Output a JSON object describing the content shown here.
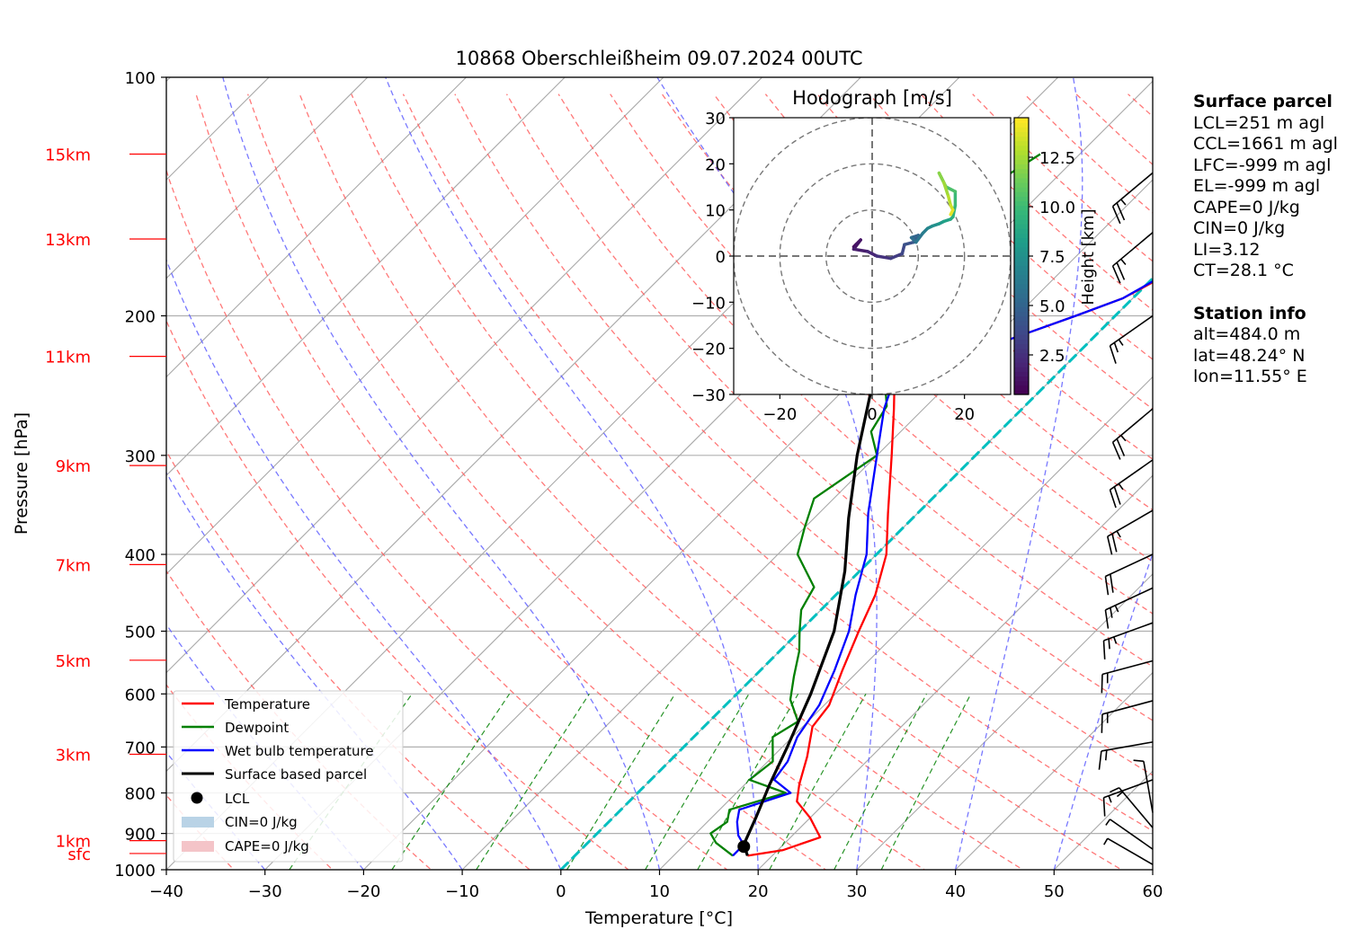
{
  "chart_data": {
    "type": "skew-t",
    "title": "10868 Oberschleißheim 09.07.2024 00UTC",
    "xlabel": "Temperature [°C]",
    "ylabel": "Pressure [hPa]",
    "xlim": [
      -40,
      60
    ],
    "ylim": [
      1000,
      100
    ],
    "x_ticks": [
      "−40",
      "−30",
      "−20",
      "−10",
      "0",
      "10",
      "20",
      "30",
      "40",
      "50",
      "60"
    ],
    "x_tick_values": [
      -40,
      -30,
      -20,
      -10,
      0,
      10,
      20,
      30,
      40,
      50,
      60
    ],
    "y_ticks": [
      "100",
      "200",
      "300",
      "400",
      "500",
      "600",
      "700",
      "800",
      "900",
      "1000"
    ],
    "y_tick_values": [
      100,
      200,
      300,
      400,
      500,
      600,
      700,
      800,
      900,
      1000
    ],
    "height_labels": [
      {
        "label": "15km",
        "p": 125
      },
      {
        "label": "13km",
        "p": 160
      },
      {
        "label": "11km",
        "p": 225
      },
      {
        "label": "9km",
        "p": 309
      },
      {
        "label": "7km",
        "p": 412
      },
      {
        "label": "5km",
        "p": 544
      },
      {
        "label": "3km",
        "p": 715
      },
      {
        "label": "1km",
        "p": 919
      },
      {
        "label": "sfc",
        "p": 954
      }
    ],
    "colors": {
      "temperature": "#ff0000",
      "dewpoint": "#008000",
      "wetbulb": "#0000ff",
      "parcel": "#000000",
      "isotherm_zero": "#00bfbf",
      "height_label": "#ff0000",
      "dry_adiabat": "#ff6060",
      "moist_adiabat": "#6060ff",
      "mixing_ratio": "#008000",
      "cin_fill": "#b9d3e6",
      "cape_fill": "#f4c4c8"
    },
    "series": [
      {
        "name": "Temperature",
        "points": [
          [
            17.5,
            960
          ],
          [
            20.5,
            945
          ],
          [
            23,
            910
          ],
          [
            20,
            860
          ],
          [
            17,
            820
          ],
          [
            15.5,
            780
          ],
          [
            13.5,
            720
          ],
          [
            11,
            660
          ],
          [
            10.5,
            620
          ],
          [
            8.3,
            560
          ],
          [
            6,
            500
          ],
          [
            4,
            450
          ],
          [
            1,
            400
          ],
          [
            -3,
            355
          ],
          [
            -8.5,
            300
          ],
          [
            -13,
            262
          ],
          [
            -16,
            240
          ],
          [
            -10,
            220
          ],
          [
            -4,
            200
          ],
          [
            -1,
            190
          ],
          [
            1.5,
            175
          ],
          [
            3,
            160
          ],
          [
            4.5,
            140
          ],
          [
            5,
            130
          ],
          [
            5.5,
            123
          ]
        ]
      },
      {
        "name": "Dewpoint",
        "points": [
          [
            16,
            960
          ],
          [
            13,
            925
          ],
          [
            11.5,
            900
          ],
          [
            12,
            870
          ],
          [
            11,
            840
          ],
          [
            15,
            800
          ],
          [
            10,
            770
          ],
          [
            10.5,
            730
          ],
          [
            8,
            680
          ],
          [
            9,
            650
          ],
          [
            6,
            610
          ],
          [
            4,
            570
          ],
          [
            2,
            530
          ],
          [
            0,
            500
          ],
          [
            -2,
            470
          ],
          [
            -3,
            440
          ],
          [
            -8,
            400
          ],
          [
            -10,
            370
          ],
          [
            -12,
            340
          ],
          [
            -10,
            300
          ],
          [
            -13,
            280
          ],
          [
            -14,
            260
          ],
          [
            -17,
            240
          ],
          [
            -24,
            220
          ],
          [
            -25,
            200
          ],
          [
            -27,
            180
          ],
          [
            -27.5,
            165
          ],
          [
            -28,
            155
          ],
          [
            -27,
            145
          ],
          [
            -25.5,
            135
          ],
          [
            -24,
            125
          ]
        ]
      },
      {
        "name": "Wet bulb temperature",
        "points": [
          [
            16,
            960
          ],
          [
            16,
            930
          ],
          [
            14.5,
            905
          ],
          [
            13,
            870
          ],
          [
            12,
            840
          ],
          [
            15.5,
            800
          ],
          [
            12.5,
            770
          ],
          [
            12,
            730
          ],
          [
            10.5,
            680
          ],
          [
            9.5,
            620
          ],
          [
            7.5,
            560
          ],
          [
            5,
            500
          ],
          [
            2,
            450
          ],
          [
            -1,
            400
          ],
          [
            -5,
            355
          ],
          [
            -10,
            300
          ],
          [
            -14,
            262
          ],
          [
            -16,
            240
          ],
          [
            -10,
            220
          ],
          [
            -4,
            200
          ],
          [
            -1,
            190
          ],
          [
            1.2,
            175
          ],
          [
            2.7,
            160
          ],
          [
            4.3,
            140
          ],
          [
            5,
            130
          ],
          [
            5.3,
            123
          ]
        ]
      },
      {
        "name": "Surface based parcel",
        "points": [
          [
            17.5,
            960
          ],
          [
            16,
            930
          ],
          [
            14.5,
            860
          ],
          [
            12.5,
            780
          ],
          [
            10.5,
            700
          ],
          [
            7.5,
            600
          ],
          [
            3.5,
            500
          ],
          [
            -1.5,
            420
          ],
          [
            -6.5,
            360
          ],
          [
            -12,
            300
          ],
          [
            -17,
            250
          ],
          [
            -21.5,
            210
          ],
          [
            -25.5,
            180
          ],
          [
            -29,
            155
          ],
          [
            -32,
            125
          ]
        ]
      }
    ],
    "lcl": {
      "t": 16.2,
      "p": 935
    },
    "wind_barbs": [
      {
        "p": 985,
        "dir": 300,
        "speed": 3
      },
      {
        "p": 942,
        "dir": 305,
        "speed": 4
      },
      {
        "p": 885,
        "dir": 320,
        "speed": 8
      },
      {
        "p": 847,
        "dir": 350,
        "speed": 5
      },
      {
        "p": 770,
        "dir": 250,
        "speed": 12
      },
      {
        "p": 690,
        "dir": 260,
        "speed": 15
      },
      {
        "p": 612,
        "dir": 255,
        "speed": 15
      },
      {
        "p": 545,
        "dir": 255,
        "speed": 15
      },
      {
        "p": 488,
        "dir": 250,
        "speed": 17
      },
      {
        "p": 441,
        "dir": 245,
        "speed": 17
      },
      {
        "p": 400,
        "dir": 245,
        "speed": 20
      },
      {
        "p": 352,
        "dir": 240,
        "speed": 22
      },
      {
        "p": 304,
        "dir": 235,
        "speed": 22
      },
      {
        "p": 262,
        "dir": 230,
        "speed": 22
      },
      {
        "p": 200,
        "dir": 235,
        "speed": 17
      },
      {
        "p": 157,
        "dir": 230,
        "speed": 22
      },
      {
        "p": 132,
        "dir": 230,
        "speed": 24
      }
    ],
    "legend": {
      "placement": "lower-left",
      "entries": [
        "Temperature",
        "Dewpoint",
        "Wet bulb temperature",
        "Surface based parcel",
        "LCL",
        "CIN=0 J/kg",
        "CAPE=0 J/kg"
      ]
    },
    "hodograph": {
      "title": "Hodograph [m/s]",
      "xlim": [
        -30,
        30
      ],
      "ylim": [
        -30,
        30
      ],
      "x_ticks": [
        "−20",
        "0",
        "20"
      ],
      "x_tick_values": [
        -20,
        0,
        20
      ],
      "y_ticks": [
        "30",
        "20",
        "10",
        "0",
        "−10",
        "−20",
        "−30"
      ],
      "y_tick_values": [
        30,
        20,
        10,
        0,
        -10,
        -20,
        -30
      ],
      "colorbar_label": "Height [km]",
      "colorbar_ticks": [
        "2.5",
        "5.0",
        "7.5",
        "10.0",
        "12.5"
      ],
      "colorbar_tick_values": [
        2.5,
        5,
        7.5,
        10,
        12.5
      ],
      "colorbar_range": [
        0.5,
        14.5
      ],
      "points": [
        [
          -4,
          2,
          0.5
        ],
        [
          -3.5,
          2.5,
          0.8
        ],
        [
          -2.5,
          3.5,
          1
        ],
        [
          -4,
          1.5,
          1.3
        ],
        [
          -1,
          1,
          1.6
        ],
        [
          1,
          0,
          2
        ],
        [
          4,
          -0.5,
          2.5
        ],
        [
          6.5,
          0.5,
          3
        ],
        [
          7,
          2.5,
          3.5
        ],
        [
          9,
          3,
          4
        ],
        [
          10,
          4.5,
          4.5
        ],
        [
          8.5,
          4,
          5
        ],
        [
          9.5,
          3,
          5.5
        ],
        [
          11,
          5,
          6
        ],
        [
          12,
          6,
          6.5
        ],
        [
          13,
          6.5,
          7
        ],
        [
          14.5,
          7,
          7.5
        ],
        [
          15.5,
          7.5,
          8
        ],
        [
          17,
          8,
          8.5
        ],
        [
          17.5,
          8.5,
          9
        ],
        [
          18,
          11,
          9.5
        ],
        [
          18,
          14,
          10
        ],
        [
          16,
          15,
          10.5
        ],
        [
          15,
          17,
          11
        ],
        [
          14.5,
          18,
          11.5
        ],
        [
          15.5,
          16,
          12
        ],
        [
          16.5,
          13,
          12.5
        ],
        [
          17,
          11,
          13
        ],
        [
          17.5,
          10,
          13.5
        ],
        [
          17,
          9,
          14
        ]
      ]
    }
  },
  "side_panel": {
    "surface_header": "Surface parcel",
    "lcl": "LCL=251 m agl",
    "ccl": "CCL=1661 m agl",
    "lfc": "LFC=-999 m agl",
    "el": "EL=-999 m agl",
    "cape": "CAPE=0 J/kg",
    "cin": "CIN=0 J/kg",
    "li": "LI=3.12",
    "ct": "CT=28.1 °C",
    "station_header": "Station info",
    "alt": "alt=484.0 m",
    "lat": "lat=48.24° N",
    "lon": "lon=11.55° E"
  }
}
